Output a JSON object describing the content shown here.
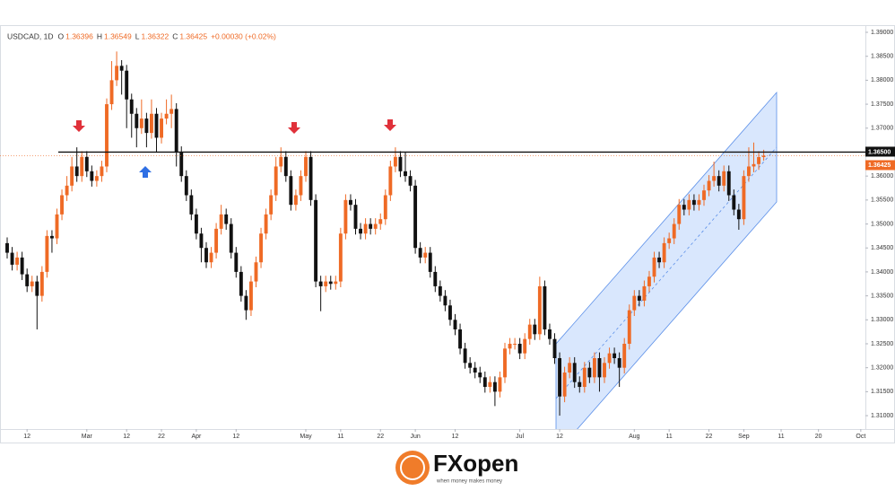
{
  "chart_data": {
    "type": "candlestick",
    "header": {
      "symbol": "USDCAD, 1D",
      "fields": [
        {
          "label": "O",
          "value": "1.36396"
        },
        {
          "label": "H",
          "value": "1.36549"
        },
        {
          "label": "L",
          "value": "1.36322"
        },
        {
          "label": "C",
          "value": "1.36425"
        }
      ],
      "change": "+0.00030 (+0.02%)"
    },
    "up_color": "#ef6a25",
    "down_color": "#111111",
    "open": [
      1.346,
      1.344,
      1.3415,
      1.343,
      1.3395,
      1.337,
      1.338,
      1.335,
      1.34,
      1.3475,
      1.347,
      1.352,
      1.356,
      1.358,
      1.362,
      1.36,
      1.364,
      1.361,
      1.359,
      1.36,
      1.362,
      1.375,
      1.38,
      1.383,
      1.382,
      1.376,
      1.373,
      1.37,
      1.372,
      1.369,
      1.373,
      1.368,
      1.372,
      1.373,
      1.374,
      1.365,
      1.36,
      1.356,
      1.352,
      1.348,
      1.345,
      1.342,
      1.344,
      1.349,
      1.352,
      1.35,
      1.344,
      1.34,
      1.335,
      1.332,
      1.338,
      1.342,
      1.348,
      1.352,
      1.356,
      1.362,
      1.364,
      1.36,
      1.354,
      1.356,
      1.36,
      1.364,
      1.355,
      1.338,
      1.337,
      1.338,
      1.3375,
      1.338,
      1.348,
      1.355,
      1.354,
      1.349,
      1.348,
      1.35,
      1.349,
      1.35,
      1.351,
      1.356,
      1.362,
      1.364,
      1.361,
      1.36,
      1.358,
      1.345,
      1.343,
      1.344,
      1.34,
      1.337,
      1.335,
      1.333,
      1.33,
      1.328,
      1.324,
      1.321,
      1.32,
      1.319,
      1.318,
      1.316,
      1.317,
      1.315,
      1.318,
      1.324,
      1.325,
      1.325,
      1.323,
      1.326,
      1.329,
      1.327,
      1.337,
      1.328,
      1.326,
      1.322,
      1.314,
      1.319,
      1.321,
      1.317,
      1.316,
      1.32,
      1.318,
      1.322,
      1.318,
      1.321,
      1.323,
      1.322,
      1.32,
      1.325,
      1.332,
      1.335,
      1.334,
      1.337,
      1.339,
      1.343,
      1.342,
      1.346,
      1.347,
      1.35,
      1.354,
      1.353,
      1.355,
      1.354,
      1.355,
      1.357,
      1.359,
      1.36,
      1.358,
      1.361,
      1.356,
      1.353,
      1.351,
      1.36,
      1.362,
      1.3625,
      1.36396
    ],
    "high": [
      1.3472,
      1.3452,
      1.3442,
      1.3442,
      1.3407,
      1.3392,
      1.3392,
      1.3412,
      1.3487,
      1.3487,
      1.3532,
      1.3572,
      1.36,
      1.364,
      1.366,
      1.3652,
      1.3652,
      1.3622,
      1.3612,
      1.3632,
      1.3762,
      1.384,
      1.386,
      1.3842,
      1.3832,
      1.3772,
      1.3742,
      1.376,
      1.3732,
      1.376,
      1.3742,
      1.3732,
      1.376,
      1.377,
      1.3752,
      1.3662,
      1.3612,
      1.3572,
      1.3532,
      1.3492,
      1.3462,
      1.3452,
      1.3502,
      1.354,
      1.3532,
      1.3512,
      1.3452,
      1.3412,
      1.3362,
      1.3392,
      1.3432,
      1.3492,
      1.3532,
      1.3572,
      1.364,
      1.366,
      1.3652,
      1.3612,
      1.3572,
      1.3612,
      1.3652,
      1.3652,
      1.3562,
      1.3392,
      1.3392,
      1.3392,
      1.3392,
      1.3492,
      1.3562,
      1.3562,
      1.3552,
      1.3502,
      1.3512,
      1.3512,
      1.3512,
      1.3522,
      1.3572,
      1.3632,
      1.366,
      1.3652,
      1.365,
      1.3612,
      1.3592,
      1.3462,
      1.3452,
      1.3452,
      1.3412,
      1.3382,
      1.3362,
      1.3342,
      1.3312,
      1.3292,
      1.3252,
      1.3222,
      1.3212,
      1.3202,
      1.3192,
      1.3182,
      1.3182,
      1.3192,
      1.3252,
      1.3262,
      1.3262,
      1.3262,
      1.3272,
      1.3302,
      1.3302,
      1.339,
      1.3382,
      1.3292,
      1.3272,
      1.3232,
      1.3202,
      1.3222,
      1.3222,
      1.3182,
      1.3212,
      1.3212,
      1.3232,
      1.3232,
      1.3222,
      1.3242,
      1.3242,
      1.3232,
      1.3262,
      1.3332,
      1.3362,
      1.3362,
      1.3382,
      1.3402,
      1.3442,
      1.3442,
      1.3472,
      1.3482,
      1.3512,
      1.3552,
      1.3552,
      1.3562,
      1.3562,
      1.3562,
      1.3582,
      1.3602,
      1.363,
      1.3612,
      1.3622,
      1.3622,
      1.3572,
      1.3542,
      1.3612,
      1.366,
      1.367,
      1.3652,
      1.36549
    ],
    "low": [
      1.3428,
      1.3403,
      1.3403,
      1.3383,
      1.3358,
      1.3358,
      1.328,
      1.3338,
      1.3388,
      1.344,
      1.3458,
      1.3508,
      1.3548,
      1.3568,
      1.3588,
      1.3588,
      1.3598,
      1.3578,
      1.3578,
      1.3588,
      1.3608,
      1.3738,
      1.3788,
      1.377,
      1.37,
      1.368,
      1.366,
      1.3688,
      1.366,
      1.3678,
      1.365,
      1.3668,
      1.3708,
      1.37,
      1.362,
      1.3588,
      1.3548,
      1.3508,
      1.3468,
      1.342,
      1.3408,
      1.3408,
      1.3428,
      1.3478,
      1.3488,
      1.3428,
      1.3388,
      1.3338,
      1.33,
      1.3308,
      1.3368,
      1.3408,
      1.3468,
      1.3508,
      1.3548,
      1.3608,
      1.3588,
      1.3528,
      1.3528,
      1.3548,
      1.3588,
      1.3538,
      1.3368,
      1.3318,
      1.3358,
      1.3363,
      1.3363,
      1.3368,
      1.3468,
      1.3528,
      1.3478,
      1.3468,
      1.3468,
      1.3478,
      1.3478,
      1.3488,
      1.3498,
      1.3548,
      1.3608,
      1.3598,
      1.3588,
      1.3568,
      1.3438,
      1.3418,
      1.3418,
      1.3388,
      1.3358,
      1.3338,
      1.3318,
      1.3288,
      1.3268,
      1.3228,
      1.3198,
      1.3188,
      1.3178,
      1.3168,
      1.3148,
      1.3148,
      1.312,
      1.3138,
      1.3168,
      1.3228,
      1.3238,
      1.3218,
      1.3218,
      1.3248,
      1.3258,
      1.3258,
      1.3268,
      1.3248,
      1.3208,
      1.31,
      1.3128,
      1.3178,
      1.3158,
      1.3148,
      1.3148,
      1.3168,
      1.3168,
      1.315,
      1.3168,
      1.3198,
      1.3208,
      1.316,
      1.3188,
      1.3238,
      1.3308,
      1.3328,
      1.3328,
      1.3358,
      1.3378,
      1.3408,
      1.3408,
      1.3448,
      1.3458,
      1.3488,
      1.3518,
      1.3518,
      1.3528,
      1.3528,
      1.3538,
      1.3558,
      1.3578,
      1.3568,
      1.3568,
      1.3548,
      1.3518,
      1.3488,
      1.3498,
      1.3588,
      1.3608,
      1.3613,
      1.36322
    ],
    "close": [
      1.344,
      1.3415,
      1.343,
      1.3395,
      1.337,
      1.338,
      1.335,
      1.34,
      1.3475,
      1.347,
      1.352,
      1.356,
      1.358,
      1.362,
      1.36,
      1.364,
      1.361,
      1.359,
      1.36,
      1.362,
      1.375,
      1.38,
      1.383,
      1.382,
      1.376,
      1.373,
      1.37,
      1.372,
      1.369,
      1.373,
      1.368,
      1.372,
      1.373,
      1.374,
      1.365,
      1.36,
      1.356,
      1.352,
      1.348,
      1.345,
      1.342,
      1.344,
      1.349,
      1.352,
      1.35,
      1.344,
      1.34,
      1.335,
      1.332,
      1.338,
      1.342,
      1.348,
      1.352,
      1.356,
      1.362,
      1.364,
      1.36,
      1.354,
      1.356,
      1.36,
      1.364,
      1.355,
      1.338,
      1.337,
      1.338,
      1.3375,
      1.338,
      1.348,
      1.355,
      1.354,
      1.349,
      1.348,
      1.35,
      1.349,
      1.35,
      1.351,
      1.356,
      1.362,
      1.364,
      1.361,
      1.36,
      1.358,
      1.345,
      1.343,
      1.344,
      1.34,
      1.337,
      1.335,
      1.333,
      1.33,
      1.328,
      1.324,
      1.321,
      1.32,
      1.319,
      1.318,
      1.316,
      1.317,
      1.315,
      1.318,
      1.324,
      1.325,
      1.325,
      1.323,
      1.326,
      1.329,
      1.327,
      1.337,
      1.328,
      1.326,
      1.322,
      1.314,
      1.319,
      1.321,
      1.317,
      1.316,
      1.32,
      1.318,
      1.322,
      1.318,
      1.321,
      1.323,
      1.322,
      1.32,
      1.325,
      1.332,
      1.335,
      1.334,
      1.337,
      1.339,
      1.343,
      1.342,
      1.346,
      1.347,
      1.35,
      1.354,
      1.353,
      1.355,
      1.354,
      1.355,
      1.357,
      1.359,
      1.36,
      1.358,
      1.361,
      1.356,
      1.353,
      1.351,
      1.36,
      1.362,
      1.3625,
      1.36396,
      1.36425
    ],
    "xlim": [
      -1.44,
      172.43
    ],
    "xticks": [
      {
        "value": 4,
        "label": "12"
      },
      {
        "value": 16,
        "label": "Mar"
      },
      {
        "value": 24,
        "label": "12"
      },
      {
        "value": 31,
        "label": "22"
      },
      {
        "value": 38,
        "label": "Apr"
      },
      {
        "value": 46,
        "label": "12"
      },
      {
        "value": 60,
        "label": "May"
      },
      {
        "value": 67,
        "label": "11"
      },
      {
        "value": 75,
        "label": "22"
      },
      {
        "value": 82,
        "label": "Jun"
      },
      {
        "value": 90,
        "label": "12"
      },
      {
        "value": 103,
        "label": "Jul"
      },
      {
        "value": 111,
        "label": "12"
      },
      {
        "value": 126,
        "label": "Aug"
      },
      {
        "value": 133,
        "label": "11"
      },
      {
        "value": 141,
        "label": "22"
      },
      {
        "value": 148,
        "label": "Sep"
      },
      {
        "value": 155.5,
        "label": "11"
      },
      {
        "value": 163,
        "label": "20"
      },
      {
        "value": 171.5,
        "label": "Oct"
      }
    ],
    "ylim": [
      1.3072,
      1.3915
    ],
    "yticks": [
      {
        "value": 1.31,
        "label": "1.31000"
      },
      {
        "value": 1.315,
        "label": "1.31500"
      },
      {
        "value": 1.32,
        "label": "1.32000"
      },
      {
        "value": 1.325,
        "label": "1.32500"
      },
      {
        "value": 1.33,
        "label": "1.33000"
      },
      {
        "value": 1.335,
        "label": "1.33500"
      },
      {
        "value": 1.34,
        "label": "1.34000"
      },
      {
        "value": 1.345,
        "label": "1.34500"
      },
      {
        "value": 1.35,
        "label": "1.35000"
      },
      {
        "value": 1.355,
        "label": "1.35500"
      },
      {
        "value": 1.36,
        "label": "1.36000"
      },
      {
        "value": 1.365,
        "label": "1.36500"
      },
      {
        "value": 1.37,
        "label": "1.37000"
      },
      {
        "value": 1.375,
        "label": "1.37500"
      },
      {
        "value": 1.38,
        "label": "1.38000"
      },
      {
        "value": 1.385,
        "label": "1.38500"
      },
      {
        "value": 1.39,
        "label": "1.39000"
      }
    ],
    "level": {
      "value": 1.365,
      "label": "1.36500"
    },
    "last_price": {
      "value": 1.36425,
      "label": "1.36425"
    },
    "grid": false
  },
  "footer": {
    "brand": "FXopen",
    "tagline": "when money makes money"
  }
}
